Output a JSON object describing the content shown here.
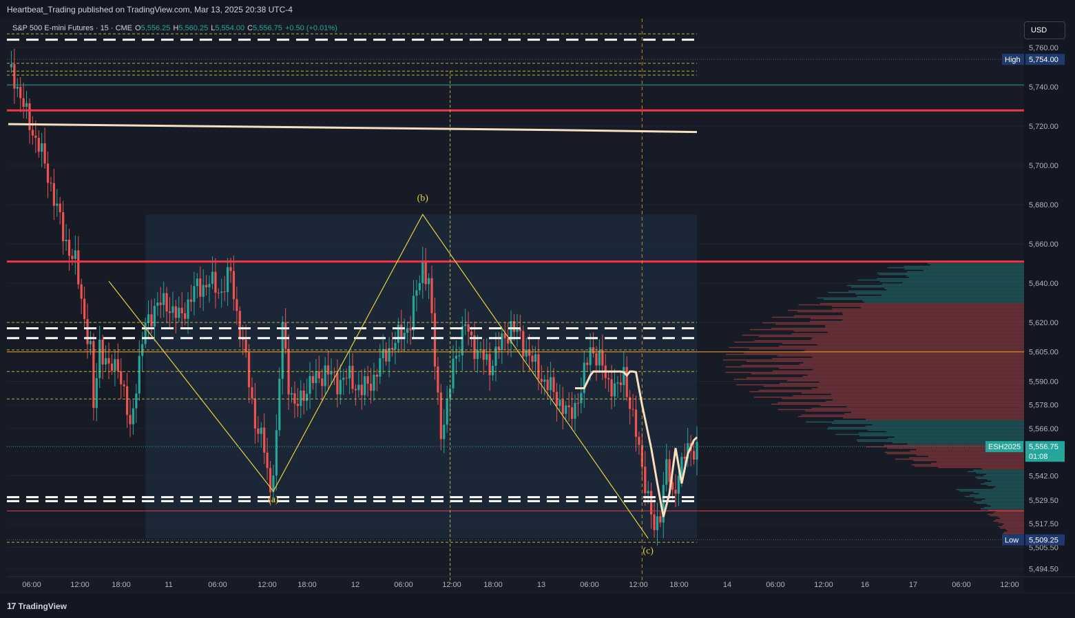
{
  "header": {
    "publisher_line": "Heartbeat_Trading published on TradingView.com, Mar 13, 2025 20:38 UTC-4"
  },
  "legend": {
    "symbol": "S&P 500 E-mini Futures · 15 · CME",
    "open_label": "O",
    "open_value": "5,556.25",
    "high_label": "H",
    "high_value": "5,560.25",
    "low_label": "L",
    "low_value": "5,554.00",
    "close_label": "C",
    "close_value": "5,556.75",
    "change": "+0.50 (+0.01%)"
  },
  "currency_button": "USD",
  "footer": {
    "brand": "TradingView",
    "logo_glyph": "17"
  },
  "colors": {
    "background": "#171b26",
    "up": "#26a69a",
    "down": "#ef5350",
    "resistance": "#f23645",
    "wave": "#e8d43a",
    "vwap": "#f7dfbf"
  },
  "chart_data": {
    "type": "candlestick",
    "symbol": "ESH2025",
    "timeframe": "15",
    "ylim": [
      5487,
      5773
    ],
    "y_ticks": [
      5494.5,
      5505.5,
      5517.5,
      5529.5,
      5542.0,
      5566.0,
      5578.0,
      5590.0,
      5605.0,
      5620.0,
      5640.0,
      5660.0,
      5680.0,
      5700.0,
      5720.0,
      5740.0,
      5760.0
    ],
    "y_tick_labels": [
      "5,494.50",
      "5,505.50",
      "5,517.50",
      "5,529.50",
      "5,542.00",
      "5,566.00",
      "5,578.00",
      "5,590.00",
      "5,605.00",
      "5,620.00",
      "5,640.00",
      "5,660.00",
      "5,680.00",
      "5,700.00",
      "5,720.00",
      "5,740.00",
      "5,760.00"
    ],
    "x_tick_labels": [
      "06:00",
      "12:00",
      "18:00",
      "11",
      "06:00",
      "12:00",
      "18:00",
      "12",
      "06:00",
      "12:00",
      "18:00",
      "13",
      "06:00",
      "12:00",
      "18:00",
      "14",
      "06:00",
      "12:00",
      "16",
      "17",
      "06:00",
      "12:00"
    ],
    "price_path": [
      [
        0,
        5750
      ],
      [
        2,
        5745
      ],
      [
        4,
        5735
      ],
      [
        6,
        5725
      ],
      [
        10,
        5710
      ],
      [
        14,
        5690
      ],
      [
        18,
        5665
      ],
      [
        22,
        5650
      ],
      [
        24,
        5632
      ],
      [
        27,
        5605
      ],
      [
        28,
        5575
      ],
      [
        30,
        5610
      ],
      [
        33,
        5595
      ],
      [
        36,
        5600
      ],
      [
        40,
        5565
      ],
      [
        42,
        5590
      ],
      [
        45,
        5618
      ],
      [
        48,
        5628
      ],
      [
        52,
        5630
      ],
      [
        56,
        5622
      ],
      [
        59,
        5630
      ],
      [
        62,
        5638
      ],
      [
        66,
        5640
      ],
      [
        70,
        5636
      ],
      [
        73,
        5645
      ],
      [
        75,
        5625
      ],
      [
        78,
        5600
      ],
      [
        81,
        5570
      ],
      [
        84,
        5555
      ],
      [
        86,
        5535
      ],
      [
        88,
        5560
      ],
      [
        90,
        5620
      ],
      [
        92,
        5590
      ],
      [
        94,
        5575
      ],
      [
        97,
        5585
      ],
      [
        100,
        5590
      ],
      [
        104,
        5595
      ],
      [
        108,
        5590
      ],
      [
        112,
        5592
      ],
      [
        116,
        5585
      ],
      [
        120,
        5592
      ],
      [
        124,
        5605
      ],
      [
        128,
        5612
      ],
      [
        132,
        5620
      ],
      [
        136,
        5650
      ],
      [
        138,
        5640
      ],
      [
        140,
        5600
      ],
      [
        142,
        5565
      ],
      [
        144,
        5575
      ],
      [
        146,
        5600
      ],
      [
        150,
        5618
      ],
      [
        154,
        5605
      ],
      [
        158,
        5598
      ],
      [
        162,
        5610
      ],
      [
        165,
        5618
      ],
      [
        168,
        5612
      ],
      [
        172,
        5600
      ],
      [
        176,
        5590
      ],
      [
        180,
        5582
      ],
      [
        184,
        5572
      ],
      [
        188,
        5585
      ],
      [
        191,
        5608
      ],
      [
        194,
        5600
      ],
      [
        197,
        5590
      ],
      [
        200,
        5585
      ],
      [
        202,
        5595
      ],
      [
        205,
        5570
      ],
      [
        208,
        5548
      ],
      [
        210,
        5530
      ],
      [
        212,
        5513
      ],
      [
        214,
        5525
      ],
      [
        216,
        5548
      ],
      [
        218,
        5530
      ],
      [
        220,
        5545
      ],
      [
        222,
        5552
      ],
      [
        224,
        5555
      ],
      [
        226,
        5557
      ]
    ],
    "resistance_lines": [
      5728,
      5651
    ],
    "thin_levels": [
      {
        "price": 5741,
        "color": "teal"
      },
      {
        "price": 5605,
        "color": "orange"
      },
      {
        "price": 5524,
        "color": "red"
      }
    ],
    "dashed_levels": [
      5764,
      5617,
      5612,
      5531,
      5529
    ],
    "elliott_wave": [
      {
        "label": "",
        "price": 5641
      },
      {
        "label": "(a)",
        "price": 5534
      },
      {
        "label": "(b)",
        "price": 5675
      },
      {
        "label": "(c)",
        "price": 5510
      }
    ],
    "vwap_values": [
      5721,
      5720,
      5719,
      5718,
      5717
    ],
    "price_markers": [
      {
        "label": "High",
        "value": "5,754.00",
        "price": 5754
      },
      {
        "label": "ESH2025",
        "value": "5,556.75",
        "sub": "01:08",
        "price": 5556.75
      },
      {
        "label": "Low",
        "value": "5,509.25",
        "price": 5509.25
      }
    ]
  }
}
